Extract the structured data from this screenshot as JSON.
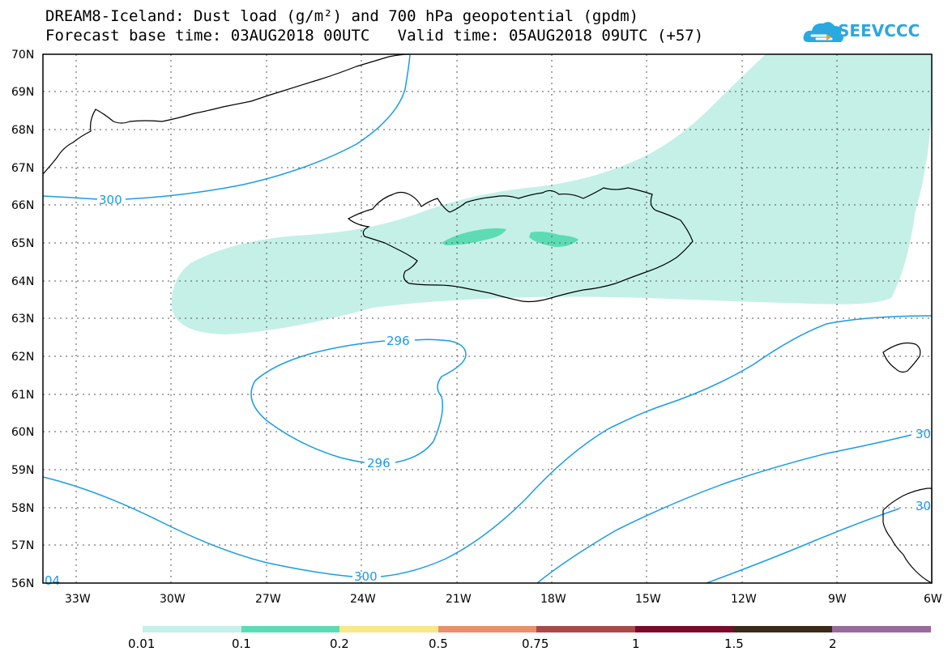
{
  "header": {
    "title": "DREAM8-Iceland: Dust load (g/m²) and 700 hPa geopotential (gpdm)",
    "subtitle": "Forecast base time: 03AUG2018 00UTC   Valid time: 05AUG2018 09UTC (+57)",
    "logo_text": "SEEVCCC"
  },
  "map": {
    "lat_labels": [
      "70N",
      "69N",
      "68N",
      "67N",
      "66N",
      "65N",
      "64N",
      "63N",
      "62N",
      "61N",
      "60N",
      "59N",
      "58N",
      "57N",
      "56N"
    ],
    "lon_labels": [
      "33W",
      "30W",
      "27W",
      "24W",
      "21W",
      "18W",
      "15W",
      "12W",
      "9W",
      "6W"
    ],
    "contour_labels": [
      "300",
      "296",
      "296",
      "300",
      "30",
      "30",
      "04"
    ],
    "colors": {
      "dust_0_01": "#c4f0e8",
      "dust_0_1": "#5ddcb4",
      "contour": "#1a9be8",
      "coast": "#000000"
    }
  },
  "colorbar": {
    "labels": [
      "0.01",
      "0.1",
      "0.2",
      "0.5",
      "0.75",
      "1",
      "1.5",
      "2"
    ],
    "colors": [
      "#c4f0e8",
      "#5ddcb4",
      "#f8e88a",
      "#e8906a",
      "#a84a4a",
      "#7a0a2a",
      "#3a2a1a",
      "#9a6a9a"
    ]
  }
}
